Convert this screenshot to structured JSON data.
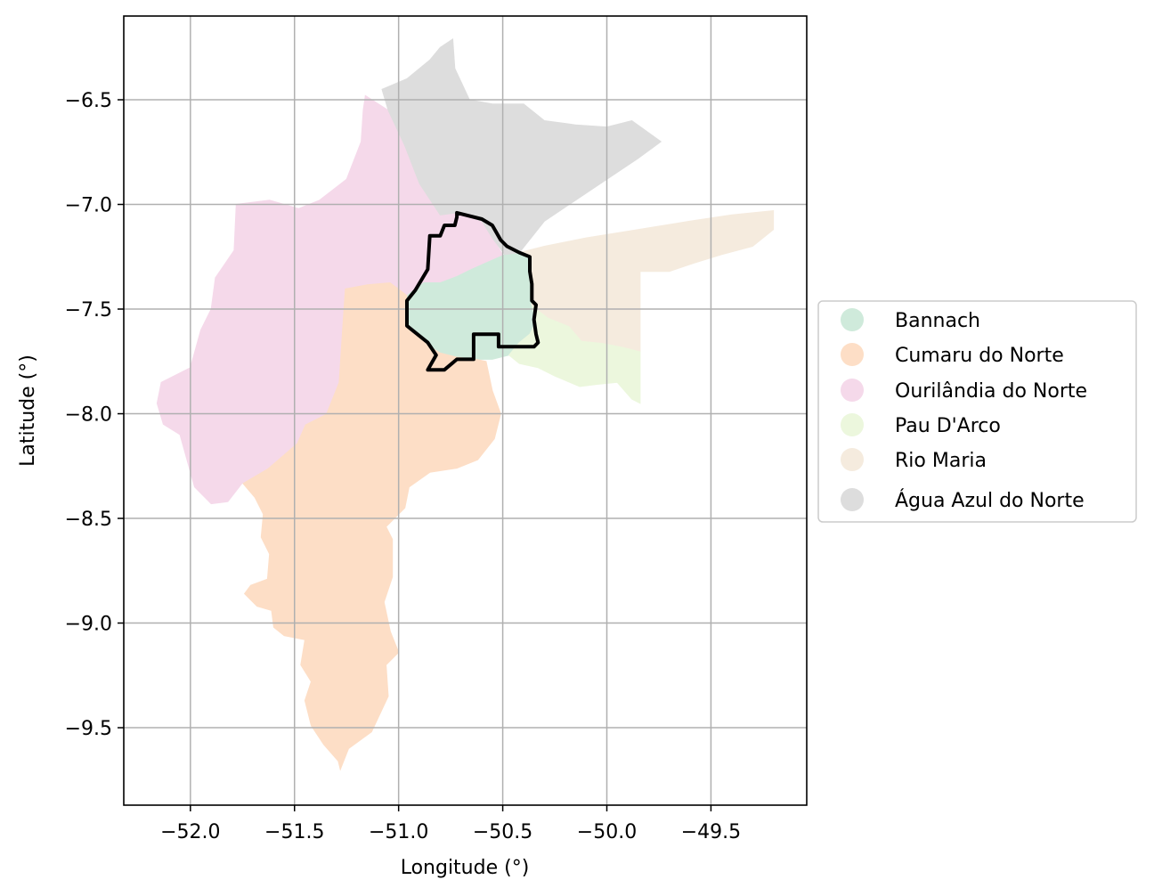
{
  "chart_data": {
    "type": "choropleth-map",
    "xlabel": "Longitude (°)",
    "ylabel": "Latitude (°)",
    "xlim": [
      -52.32,
      -49.04
    ],
    "ylim": [
      -9.87,
      -6.1
    ],
    "x_ticks": [
      -52.0,
      -51.5,
      -51.0,
      -50.5,
      -50.0,
      -49.5
    ],
    "x_tick_labels": [
      "−52.0",
      "−51.5",
      "−51.0",
      "−50.5",
      "−50.0",
      "−49.5"
    ],
    "y_ticks": [
      -6.5,
      -7.0,
      -7.5,
      -8.0,
      -8.5,
      -9.0,
      -9.5
    ],
    "y_tick_labels": [
      "−6.5",
      "−7.0",
      "−7.5",
      "−8.0",
      "−8.5",
      "−9.0",
      "−9.5"
    ],
    "grid": true,
    "legend_position": "right",
    "regions": [
      {
        "name": "Bannach",
        "color": "#cfeadb",
        "coords": [
          [
            -50.96,
            -7.43
          ],
          [
            -50.88,
            -7.37
          ],
          [
            -50.8,
            -7.37
          ],
          [
            -50.72,
            -7.34
          ],
          [
            -50.66,
            -7.31
          ],
          [
            -50.57,
            -7.27
          ],
          [
            -50.49,
            -7.24
          ],
          [
            -50.42,
            -7.23
          ],
          [
            -50.36,
            -7.25
          ],
          [
            -50.36,
            -7.36
          ],
          [
            -50.34,
            -7.48
          ],
          [
            -50.34,
            -7.56
          ],
          [
            -50.37,
            -7.62
          ],
          [
            -50.42,
            -7.66
          ],
          [
            -50.47,
            -7.72
          ],
          [
            -50.55,
            -7.74
          ],
          [
            -50.63,
            -7.74
          ],
          [
            -50.72,
            -7.73
          ],
          [
            -50.8,
            -7.71
          ],
          [
            -50.85,
            -7.68
          ],
          [
            -50.91,
            -7.63
          ],
          [
            -50.96,
            -7.58
          ],
          [
            -50.97,
            -7.5
          ]
        ]
      },
      {
        "name": "Cumaru do Norte",
        "color": "#fddec6",
        "coords": [
          [
            -51.04,
            -7.37
          ],
          [
            -51.15,
            -7.38
          ],
          [
            -51.26,
            -7.4
          ],
          [
            -51.27,
            -7.55
          ],
          [
            -51.29,
            -7.85
          ],
          [
            -51.35,
            -8.0
          ],
          [
            -51.45,
            -8.05
          ],
          [
            -51.49,
            -8.14
          ],
          [
            -51.63,
            -8.26
          ],
          [
            -51.75,
            -8.33
          ],
          [
            -51.69,
            -8.4
          ],
          [
            -51.65,
            -8.48
          ],
          [
            -51.66,
            -8.59
          ],
          [
            -51.62,
            -8.67
          ],
          [
            -51.63,
            -8.79
          ],
          [
            -51.71,
            -8.82
          ],
          [
            -51.74,
            -8.86
          ],
          [
            -51.68,
            -8.92
          ],
          [
            -51.61,
            -8.94
          ],
          [
            -51.6,
            -9.02
          ],
          [
            -51.55,
            -9.06
          ],
          [
            -51.45,
            -9.08
          ],
          [
            -51.47,
            -9.2
          ],
          [
            -51.42,
            -9.28
          ],
          [
            -51.45,
            -9.37
          ],
          [
            -51.42,
            -9.49
          ],
          [
            -51.36,
            -9.58
          ],
          [
            -51.29,
            -9.66
          ],
          [
            -51.28,
            -9.7
          ],
          [
            -51.24,
            -9.6
          ],
          [
            -51.13,
            -9.52
          ],
          [
            -51.05,
            -9.35
          ],
          [
            -51.06,
            -9.2
          ],
          [
            -51.0,
            -9.14
          ],
          [
            -51.04,
            -9.04
          ],
          [
            -51.07,
            -8.9
          ],
          [
            -51.03,
            -8.78
          ],
          [
            -51.03,
            -8.6
          ],
          [
            -51.06,
            -8.54
          ],
          [
            -50.97,
            -8.45
          ],
          [
            -50.95,
            -8.35
          ],
          [
            -50.85,
            -8.28
          ],
          [
            -50.72,
            -8.26
          ],
          [
            -50.62,
            -8.22
          ],
          [
            -50.54,
            -8.12
          ],
          [
            -50.51,
            -8.0
          ],
          [
            -50.55,
            -7.89
          ],
          [
            -50.58,
            -7.75
          ],
          [
            -50.63,
            -7.74
          ],
          [
            -50.72,
            -7.73
          ],
          [
            -50.8,
            -7.71
          ],
          [
            -50.85,
            -7.68
          ],
          [
            -50.91,
            -7.63
          ],
          [
            -50.96,
            -7.58
          ],
          [
            -50.97,
            -7.5
          ],
          [
            -50.96,
            -7.43
          ],
          [
            -51.0,
            -7.4
          ]
        ]
      },
      {
        "name": "Ourilândia do Norte",
        "color": "#f5d9ea",
        "coords": [
          [
            -51.16,
            -6.48
          ],
          [
            -51.05,
            -6.55
          ],
          [
            -50.97,
            -6.72
          ],
          [
            -50.9,
            -6.9
          ],
          [
            -50.8,
            -7.05
          ],
          [
            -50.72,
            -7.04
          ],
          [
            -50.6,
            -7.08
          ],
          [
            -50.55,
            -7.16
          ],
          [
            -50.5,
            -7.24
          ],
          [
            -50.57,
            -7.27
          ],
          [
            -50.66,
            -7.31
          ],
          [
            -50.72,
            -7.34
          ],
          [
            -50.8,
            -7.37
          ],
          [
            -50.88,
            -7.37
          ],
          [
            -50.96,
            -7.43
          ],
          [
            -51.0,
            -7.4
          ],
          [
            -51.04,
            -7.37
          ],
          [
            -51.15,
            -7.38
          ],
          [
            -51.26,
            -7.4
          ],
          [
            -51.27,
            -7.55
          ],
          [
            -51.29,
            -7.85
          ],
          [
            -51.35,
            -8.0
          ],
          [
            -51.45,
            -8.05
          ],
          [
            -51.49,
            -8.14
          ],
          [
            -51.63,
            -8.26
          ],
          [
            -51.75,
            -8.33
          ],
          [
            -51.82,
            -8.42
          ],
          [
            -51.9,
            -8.43
          ],
          [
            -51.98,
            -8.35
          ],
          [
            -52.05,
            -8.1
          ],
          [
            -52.13,
            -8.05
          ],
          [
            -52.16,
            -7.95
          ],
          [
            -52.14,
            -7.85
          ],
          [
            -52.0,
            -7.78
          ],
          [
            -51.95,
            -7.6
          ],
          [
            -51.9,
            -7.5
          ],
          [
            -51.88,
            -7.35
          ],
          [
            -51.79,
            -7.22
          ],
          [
            -51.78,
            -7.0
          ],
          [
            -51.62,
            -6.98
          ],
          [
            -51.48,
            -7.02
          ],
          [
            -51.38,
            -6.98
          ],
          [
            -51.25,
            -6.88
          ],
          [
            -51.18,
            -6.7
          ],
          [
            -51.17,
            -6.55
          ]
        ]
      },
      {
        "name": "Pau D'Arco",
        "color": "#ecf7dd",
        "coords": [
          [
            -50.36,
            -7.48
          ],
          [
            -50.28,
            -7.54
          ],
          [
            -50.18,
            -7.58
          ],
          [
            -50.12,
            -7.65
          ],
          [
            -50.02,
            -7.66
          ],
          [
            -49.92,
            -7.68
          ],
          [
            -49.84,
            -7.7
          ],
          [
            -49.84,
            -7.95
          ],
          [
            -49.88,
            -7.93
          ],
          [
            -49.95,
            -7.85
          ],
          [
            -50.05,
            -7.86
          ],
          [
            -50.13,
            -7.87
          ],
          [
            -50.25,
            -7.82
          ],
          [
            -50.33,
            -7.78
          ],
          [
            -50.42,
            -7.76
          ],
          [
            -50.47,
            -7.72
          ],
          [
            -50.42,
            -7.66
          ],
          [
            -50.37,
            -7.62
          ],
          [
            -50.34,
            -7.56
          ]
        ]
      },
      {
        "name": "Rio Maria",
        "color": "#f5ebde",
        "coords": [
          [
            -50.42,
            -7.23
          ],
          [
            -50.3,
            -7.2
          ],
          [
            -50.1,
            -7.16
          ],
          [
            -49.85,
            -7.12
          ],
          [
            -49.6,
            -7.08
          ],
          [
            -49.4,
            -7.05
          ],
          [
            -49.2,
            -7.03
          ],
          [
            -49.2,
            -7.12
          ],
          [
            -49.3,
            -7.2
          ],
          [
            -49.45,
            -7.24
          ],
          [
            -49.58,
            -7.28
          ],
          [
            -49.7,
            -7.32
          ],
          [
            -49.84,
            -7.32
          ],
          [
            -49.84,
            -7.7
          ],
          [
            -49.92,
            -7.68
          ],
          [
            -50.02,
            -7.66
          ],
          [
            -50.12,
            -7.65
          ],
          [
            -50.18,
            -7.58
          ],
          [
            -50.28,
            -7.54
          ],
          [
            -50.36,
            -7.48
          ],
          [
            -50.36,
            -7.36
          ],
          [
            -50.36,
            -7.25
          ]
        ]
      },
      {
        "name": "Água Azul do Norte",
        "color": "#dddddd",
        "coords": [
          [
            -51.08,
            -6.45
          ],
          [
            -50.96,
            -6.4
          ],
          [
            -50.85,
            -6.31
          ],
          [
            -50.8,
            -6.25
          ],
          [
            -50.74,
            -6.21
          ],
          [
            -50.73,
            -6.35
          ],
          [
            -50.66,
            -6.5
          ],
          [
            -50.55,
            -6.52
          ],
          [
            -50.4,
            -6.52
          ],
          [
            -50.3,
            -6.6
          ],
          [
            -50.15,
            -6.62
          ],
          [
            -50.0,
            -6.63
          ],
          [
            -49.88,
            -6.6
          ],
          [
            -49.74,
            -6.7
          ],
          [
            -49.85,
            -6.78
          ],
          [
            -50.0,
            -6.88
          ],
          [
            -50.15,
            -6.98
          ],
          [
            -50.3,
            -7.08
          ],
          [
            -50.42,
            -7.23
          ],
          [
            -50.49,
            -7.24
          ],
          [
            -50.55,
            -7.16
          ],
          [
            -50.6,
            -7.08
          ],
          [
            -50.72,
            -7.04
          ],
          [
            -50.8,
            -7.05
          ],
          [
            -50.9,
            -6.9
          ],
          [
            -50.97,
            -6.72
          ],
          [
            -51.05,
            -6.55
          ]
        ]
      }
    ],
    "outline": {
      "color": "#000000",
      "coords": [
        [
          -50.72,
          -7.04
        ],
        [
          -50.6,
          -7.07
        ],
        [
          -50.55,
          -7.1
        ],
        [
          -50.51,
          -7.17
        ],
        [
          -50.48,
          -7.2
        ],
        [
          -50.42,
          -7.23
        ],
        [
          -50.37,
          -7.25
        ],
        [
          -50.37,
          -7.32
        ],
        [
          -50.36,
          -7.38
        ],
        [
          -50.36,
          -7.46
        ],
        [
          -50.34,
          -7.48
        ],
        [
          -50.35,
          -7.55
        ],
        [
          -50.34,
          -7.62
        ],
        [
          -50.33,
          -7.66
        ],
        [
          -50.35,
          -7.68
        ],
        [
          -50.52,
          -7.68
        ],
        [
          -50.52,
          -7.62
        ],
        [
          -50.64,
          -7.62
        ],
        [
          -50.64,
          -7.74
        ],
        [
          -50.72,
          -7.74
        ],
        [
          -50.78,
          -7.79
        ],
        [
          -50.86,
          -7.79
        ],
        [
          -50.82,
          -7.72
        ],
        [
          -50.86,
          -7.66
        ],
        [
          -50.96,
          -7.58
        ],
        [
          -50.96,
          -7.46
        ],
        [
          -50.92,
          -7.41
        ],
        [
          -50.86,
          -7.31
        ],
        [
          -50.85,
          -7.15
        ],
        [
          -50.8,
          -7.15
        ],
        [
          -50.78,
          -7.1
        ],
        [
          -50.73,
          -7.1
        ],
        [
          -50.72,
          -7.06
        ]
      ]
    }
  }
}
